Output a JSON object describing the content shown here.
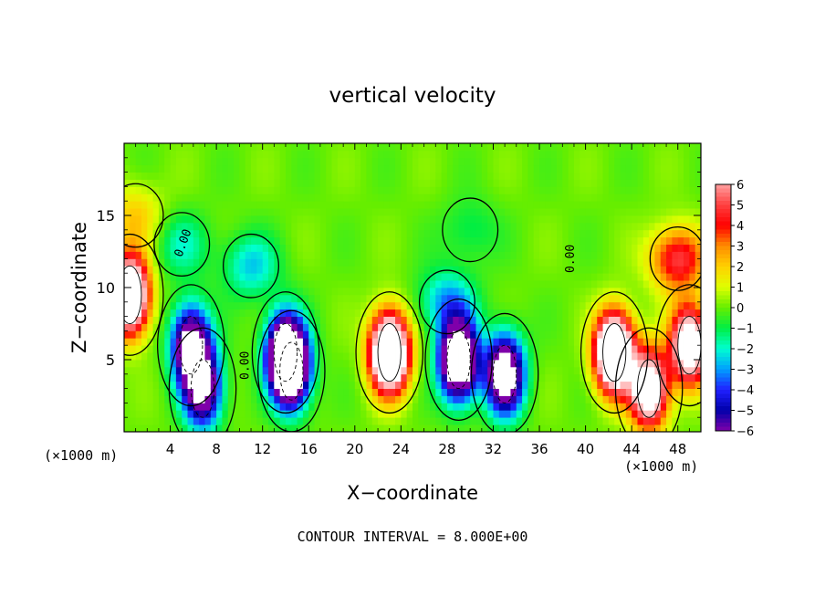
{
  "chart_data": {
    "type": "heatmap",
    "title": "vertical velocity",
    "xlabel": "X−coordinate",
    "ylabel": "Z−coordinate",
    "x_unit_label_left": "(×1000 m)",
    "x_unit_label_right": "(×1000 m)",
    "footer": "CONTOUR INTERVAL = 8.000E+00",
    "xlim": [
      0,
      50
    ],
    "ylim": [
      0,
      20
    ],
    "x_ticks": [
      "4",
      "8",
      "12",
      "16",
      "20",
      "24",
      "28",
      "32",
      "36",
      "40",
      "44",
      "48"
    ],
    "x_tick_values": [
      4,
      8,
      12,
      16,
      20,
      24,
      28,
      32,
      36,
      40,
      44,
      48
    ],
    "y_ticks": [
      "5",
      "10",
      "15"
    ],
    "y_tick_values": [
      5,
      10,
      15
    ],
    "contour_labels": [
      "0.00",
      "0.00",
      "0.00"
    ],
    "colorbar": {
      "labels": [
        "6",
        "5",
        "4",
        "3",
        "2",
        "1",
        "0",
        "−1",
        "−2",
        "−3",
        "−4",
        "−5",
        "−6"
      ],
      "values": [
        6,
        5,
        4,
        3,
        2,
        1,
        0,
        -1,
        -2,
        -3,
        -4,
        -5,
        -6
      ],
      "colors": [
        "#ffa0a0",
        "#ff4040",
        "#ff0000",
        "#ff8c00",
        "#ffd000",
        "#e0ff00",
        "#66ee00",
        "#00ee44",
        "#00ffd0",
        "#00a0ff",
        "#2020ff",
        "#0000aa",
        "#7f00aa"
      ]
    },
    "updrafts": [
      {
        "x": 0.5,
        "z": 9.5,
        "peak": 12
      },
      {
        "x": 5.8,
        "z": 6.0,
        "peak": -9
      },
      {
        "x": 6.8,
        "z": 3.0,
        "peak": -8
      },
      {
        "x": 11,
        "z": 11.5,
        "peak": -2.5
      },
      {
        "x": 14,
        "z": 5.5,
        "peak": -10
      },
      {
        "x": 14.5,
        "z": 4.2,
        "peak": -8
      },
      {
        "x": 23,
        "z": 5.5,
        "peak": 14
      },
      {
        "x": 29,
        "z": 5.0,
        "peak": -12
      },
      {
        "x": 28,
        "z": 9.0,
        "peak": -3
      },
      {
        "x": 33,
        "z": 4.0,
        "peak": -10
      },
      {
        "x": 42.5,
        "z": 5.5,
        "peak": 14
      },
      {
        "x": 45.5,
        "z": 3.0,
        "peak": 10
      },
      {
        "x": 49,
        "z": 6.0,
        "peak": 10
      },
      {
        "x": 48,
        "z": 12.0,
        "peak": 5
      },
      {
        "x": 5,
        "z": 13,
        "peak": -1.8
      },
      {
        "x": 30,
        "z": 14,
        "peak": -1.2
      },
      {
        "x": 1,
        "z": 15,
        "peak": 2
      }
    ]
  }
}
